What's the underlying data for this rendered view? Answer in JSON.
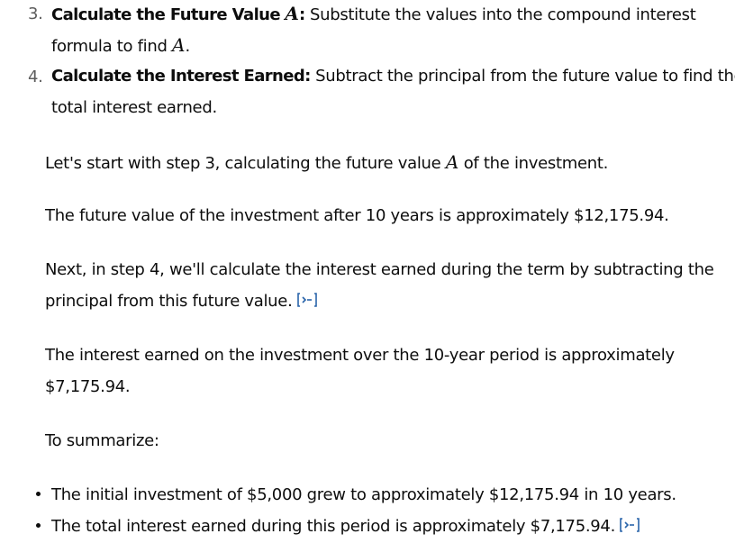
{
  "steps": [
    {
      "number": "3.",
      "title": "Calculate the Future Value",
      "title_var": "A",
      "title_suffix": ":",
      "line1_text": " Substitute the values into the compound interest",
      "line2_text": "formula to find ",
      "line2_var": "A",
      "line2_end": "."
    },
    {
      "number": "4.",
      "title": "Calculate the Interest Earned",
      "title_suffix": ":",
      "line1_text": " Subtract the principal from the future value to find the",
      "line2_text": "total interest earned."
    }
  ],
  "paragraphs": {
    "start_pre": "Let's start with step 3, calculating the future value ",
    "start_var": "A",
    "start_post": " of the investment.",
    "future_value": "The future value of the investment after 10 years is approximately $12,175.94.",
    "next_line1": "Next, in step 4, we'll calculate the interest earned during the term by subtracting the",
    "next_line2": "principal from this future value.",
    "interest_line1": "The interest earned on the investment over the 10-year period is approximately",
    "interest_line2": "$7,175.94.",
    "summary_intro": "To summarize:"
  },
  "bullets": [
    "The initial investment of $5,000 grew to approximately $12,175.94 in 10 years.",
    "The total interest earned during this period is approximately $7,175.94."
  ],
  "icons": {
    "code_analysis": "code-analysis-icon"
  },
  "colors": {
    "text": "#0d0d0d",
    "list_number": "#5d5d5d",
    "link_icon": "#2964aa"
  }
}
